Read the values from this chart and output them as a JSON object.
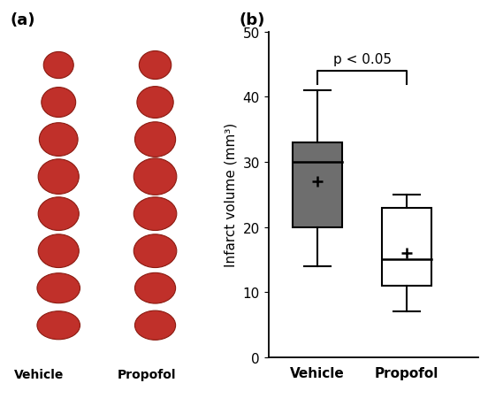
{
  "categories": [
    "Vehicle",
    "Propofol"
  ],
  "vehicle": {
    "median": 30,
    "q1": 20,
    "q3": 33,
    "whisker_low": 14,
    "whisker_high": 41,
    "mean": 27
  },
  "propofol": {
    "median": 15,
    "q1": 11,
    "q3": 23,
    "whisker_low": 7,
    "whisker_high": 25,
    "mean": 16
  },
  "ylabel": "Infarct volume (mm³)",
  "ylim": [
    0,
    50
  ],
  "yticks": [
    0,
    10,
    20,
    30,
    40,
    50
  ],
  "sig_text": "p < 0.05",
  "vehicle_color": "#6e6e6e",
  "propofol_color": "#ffffff",
  "box_width": 0.55,
  "label_a": "(a)",
  "label_b": "(b)",
  "panel_a_bg": "#2060b0",
  "slice_color": "#c0302a",
  "slice_edge": "#8b1a10",
  "arrow_color": "#ffffff"
}
